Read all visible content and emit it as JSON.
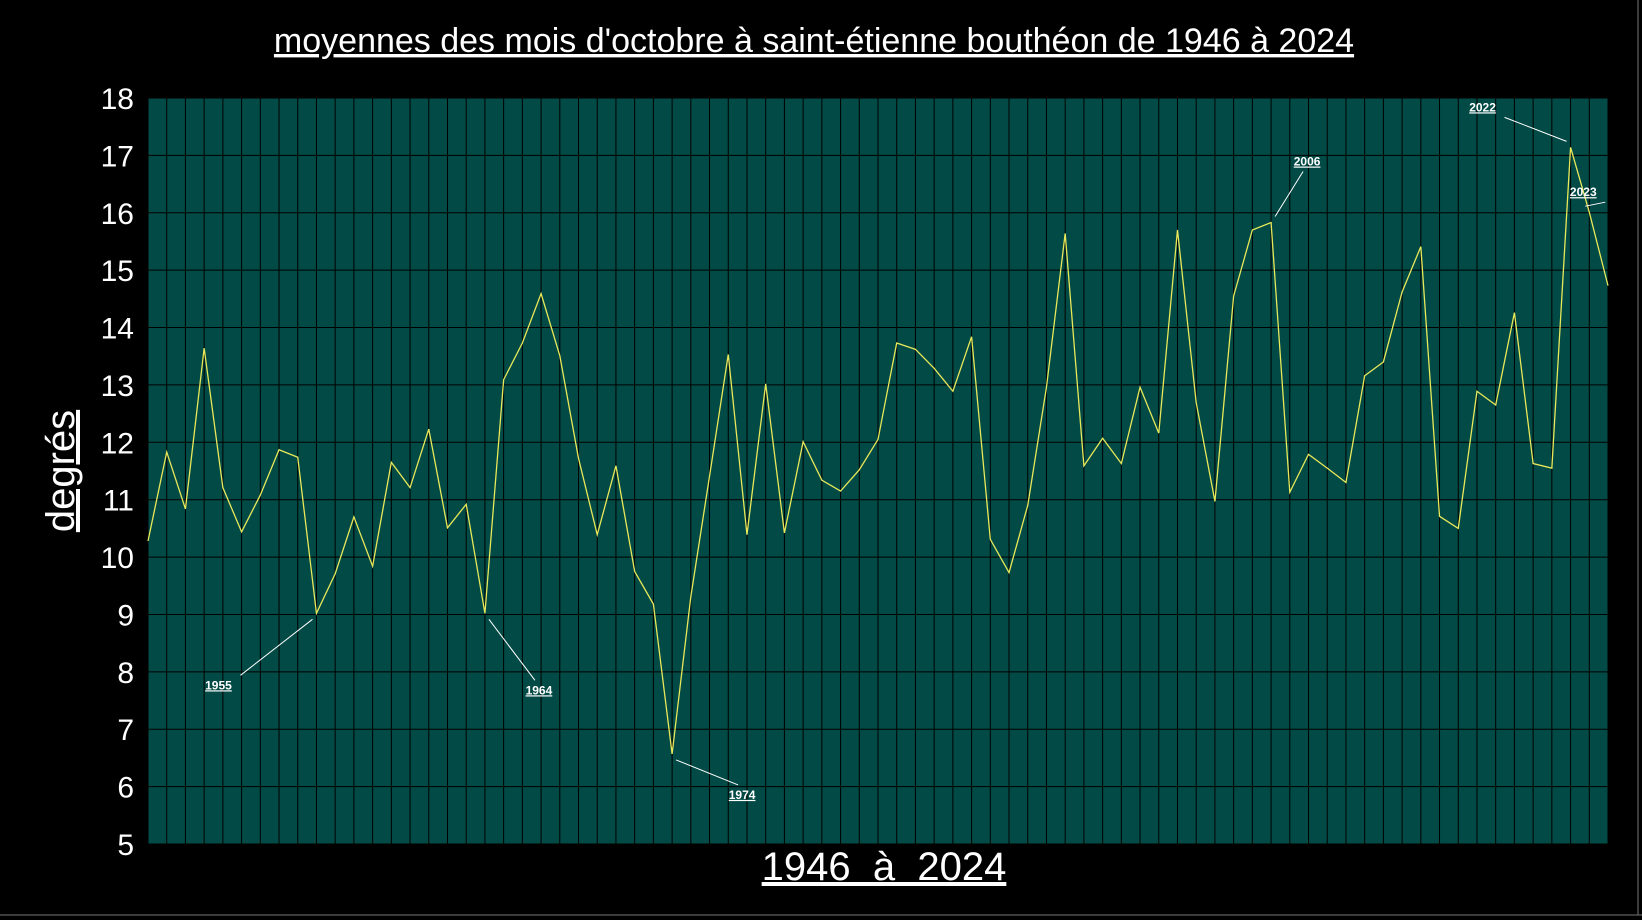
{
  "chart_data": {
    "type": "line",
    "title": "moyennes des mois d'octobre à saint-étienne bouthéon de 1946 à 2024",
    "x_label": "1946  à  2024",
    "y_label": "degrés",
    "x": [
      1946,
      1947,
      1948,
      1949,
      1950,
      1951,
      1952,
      1953,
      1954,
      1955,
      1956,
      1957,
      1958,
      1959,
      1960,
      1961,
      1962,
      1963,
      1964,
      1965,
      1966,
      1967,
      1968,
      1969,
      1970,
      1971,
      1972,
      1973,
      1974,
      1975,
      1976,
      1977,
      1978,
      1979,
      1980,
      1981,
      1982,
      1983,
      1984,
      1985,
      1986,
      1987,
      1988,
      1989,
      1990,
      1991,
      1992,
      1993,
      1994,
      1995,
      1996,
      1997,
      1998,
      1999,
      2000,
      2001,
      2002,
      2003,
      2004,
      2005,
      2006,
      2007,
      2008,
      2009,
      2010,
      2011,
      2012,
      2013,
      2014,
      2015,
      2016,
      2017,
      2018,
      2019,
      2020,
      2021,
      2022,
      2023,
      2024
    ],
    "series": [
      {
        "color": "#e8e85a",
        "values": [
          10.28,
          11.83,
          10.84,
          13.64,
          11.21,
          10.44,
          11.08,
          11.87,
          11.74,
          9.02,
          9.71,
          10.7,
          9.84,
          11.65,
          11.21,
          12.23,
          10.51,
          10.92,
          9.02,
          13.09,
          13.73,
          14.59,
          13.51,
          11.72,
          10.39,
          11.59,
          9.75,
          9.18,
          6.57,
          9.31,
          11.41,
          13.53,
          10.39,
          13.02,
          10.42,
          12.01,
          11.34,
          11.15,
          11.52,
          12.05,
          13.73,
          13.62,
          13.29,
          12.89,
          13.84,
          10.31,
          9.73,
          10.9,
          12.96,
          15.64,
          11.59,
          12.07,
          11.63,
          12.96,
          12.16,
          15.7,
          12.69,
          10.97,
          14.55,
          15.7,
          15.83,
          11.13,
          11.79,
          11.55,
          11.3,
          13.16,
          13.4,
          14.62,
          15.41,
          10.71,
          10.5,
          12.89,
          12.65,
          14.26,
          11.63,
          11.55,
          17.14,
          16.01,
          14.73
        ]
      }
    ],
    "xlim": [
      1946,
      2024
    ],
    "ylim": [
      5,
      18
    ],
    "yticks": [
      5,
      6,
      7,
      8,
      9,
      10,
      11,
      12,
      13,
      14,
      15,
      16,
      17,
      18
    ],
    "grid": true,
    "plot_background": "#024a45",
    "annotations": [
      {
        "text": "1955"
      },
      {
        "text": "1964"
      },
      {
        "text": "1974"
      },
      {
        "text": "2006"
      },
      {
        "text": "2022"
      },
      {
        "text": "2023"
      }
    ]
  }
}
